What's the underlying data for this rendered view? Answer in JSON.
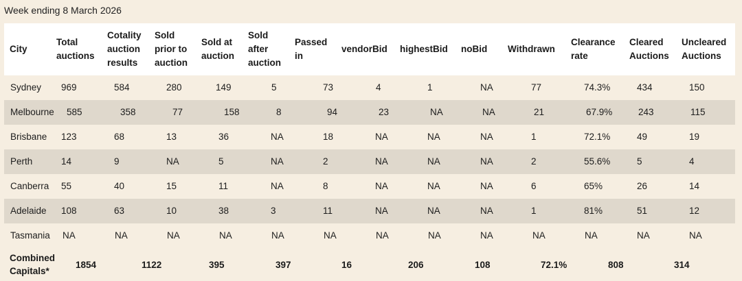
{
  "caption": "Week ending 8 March 2026",
  "table": {
    "headers": {
      "city": "City",
      "total": "Total auctions",
      "cotality": "Cotality auction results",
      "prior": "Sold prior to auction",
      "at": "Sold at auction",
      "after": "Sold after auction",
      "passed": "Passed in",
      "vendorbid": "vendorBid",
      "highestbid": "highestBid",
      "nobid": "noBid",
      "withdrawn": "Withdrawn",
      "clearance": "Clearance rate",
      "cleared": "Cleared Auctions",
      "uncleared": "Uncleared Auctions"
    },
    "rows": [
      {
        "city": "Sydney",
        "total": "969",
        "cotality": "584",
        "prior": "280",
        "at": "149",
        "after": "5",
        "passed": "73",
        "vendorbid": "4",
        "highestbid": "1",
        "nobid": "NA",
        "withdrawn": "77",
        "clearance": "74.3%",
        "cleared": "434",
        "uncleared": "150"
      },
      {
        "city": "Melbourne",
        "total": "585",
        "cotality": "358",
        "prior": "77",
        "at": "158",
        "after": "8",
        "passed": "94",
        "vendorbid": "23",
        "highestbid": "NA",
        "nobid": "NA",
        "withdrawn": "21",
        "clearance": "67.9%",
        "cleared": "243",
        "uncleared": "115"
      },
      {
        "city": "Brisbane",
        "total": "123",
        "cotality": "68",
        "prior": "13",
        "at": "36",
        "after": "NA",
        "passed": "18",
        "vendorbid": "NA",
        "highestbid": "NA",
        "nobid": "NA",
        "withdrawn": "1",
        "clearance": "72.1%",
        "cleared": "49",
        "uncleared": "19"
      },
      {
        "city": "Perth",
        "total": "14",
        "cotality": "9",
        "prior": "NA",
        "at": "5",
        "after": "NA",
        "passed": "2",
        "vendorbid": "NA",
        "highestbid": "NA",
        "nobid": "NA",
        "withdrawn": "2",
        "clearance": "55.6%",
        "cleared": "5",
        "uncleared": "4"
      },
      {
        "city": "Canberra",
        "total": "55",
        "cotality": "40",
        "prior": "15",
        "at": "11",
        "after": "NA",
        "passed": "8",
        "vendorbid": "NA",
        "highestbid": "NA",
        "nobid": "NA",
        "withdrawn": "6",
        "clearance": "65%",
        "cleared": "26",
        "uncleared": "14"
      },
      {
        "city": "Adelaide",
        "total": "108",
        "cotality": "63",
        "prior": "10",
        "at": "38",
        "after": "3",
        "passed": "11",
        "vendorbid": "NA",
        "highestbid": "NA",
        "nobid": "NA",
        "withdrawn": "1",
        "clearance": "81%",
        "cleared": "51",
        "uncleared": "12"
      },
      {
        "city": "Tasmania",
        "total": "NA",
        "cotality": "NA",
        "prior": "NA",
        "at": "NA",
        "after": "NA",
        "passed": "NA",
        "vendorbid": "NA",
        "highestbid": "NA",
        "nobid": "NA",
        "withdrawn": "NA",
        "clearance": "NA",
        "cleared": "NA",
        "uncleared": "NA"
      }
    ],
    "footer": {
      "label": "Combined Capitals*",
      "values": [
        "1854",
        "1122",
        "395",
        "397",
        "16",
        "206",
        "108",
        "72.1%",
        "808",
        "314"
      ]
    }
  }
}
